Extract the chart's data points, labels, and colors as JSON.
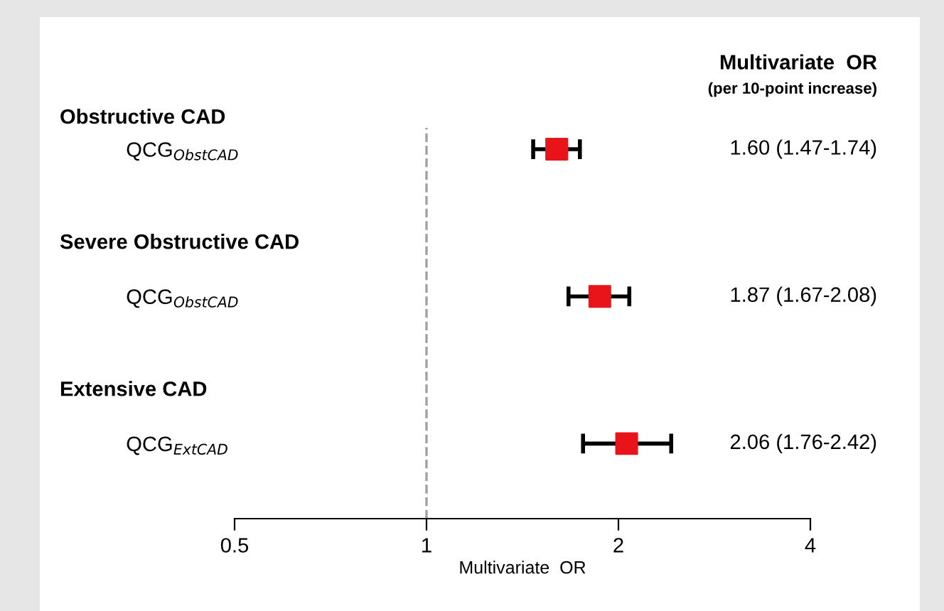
{
  "chart_data": {
    "type": "scatter",
    "orientation": "horizontal",
    "title": "Multivariate  OR",
    "subtitle": "(per 10-point increase)",
    "xlabel": "Multivariate  OR",
    "categories": [
      "QCG$_{ObstCAD}$",
      "QCG$_{ObstCAD}$",
      "QCG$_{ExtCAD}$"
    ],
    "values": [
      1.6,
      1.87,
      2.06
    ],
    "errors": [
      [
        1.47,
        1.74
      ],
      [
        1.67,
        2.08
      ],
      [
        1.76,
        2.42
      ]
    ],
    "annotations": [
      "Obstructive CAD",
      "Severe Obstructive CAD",
      "Extensive CAD",
      "1.60 (1.47-1.74)",
      "1.87 (1.67-2.08)",
      "2.06 (1.76-2.42)"
    ],
    "color": "#e8141a",
    "marker": "square",
    "log": "x",
    "xlim": [
      0.5,
      4
    ],
    "xticks": [
      0.5,
      1,
      2,
      4
    ],
    "ref_lines": [
      {
        "axis": "x",
        "value": 1,
        "color": "#a0a0a0",
        "line_style": "dashed"
      }
    ],
    "grid": false,
    "legend": false
  }
}
